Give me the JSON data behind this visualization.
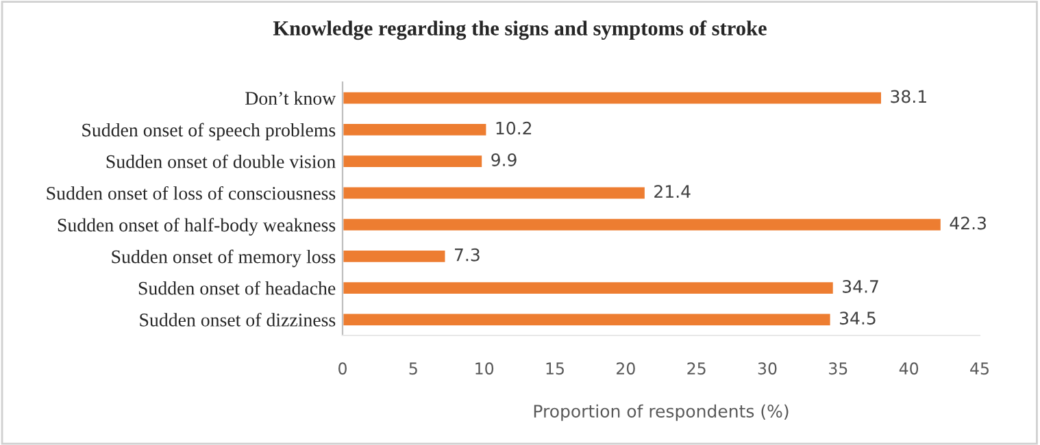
{
  "chart_data": {
    "type": "bar",
    "orientation": "horizontal",
    "title": "Knowledge regarding the signs and symptoms of stroke",
    "xlabel": "Proportion of respondents (%)",
    "categories": [
      "Don’t know",
      "Sudden onset of speech problems",
      "Sudden onset of double vision",
      "Sudden onset of loss of consciousness",
      "Sudden onset of half-body weakness",
      "Sudden onset of memory loss",
      "Sudden onset of headache",
      "Sudden onset of dizziness"
    ],
    "values": [
      38.1,
      10.2,
      9.9,
      21.4,
      42.3,
      7.3,
      34.7,
      34.5
    ],
    "color": "#ed7d31",
    "xlim": [
      0,
      45
    ],
    "xticks": [
      0,
      5,
      10,
      15,
      20,
      25,
      30,
      35,
      40,
      45
    ],
    "data_labels": true,
    "grid": false,
    "legend": false
  }
}
